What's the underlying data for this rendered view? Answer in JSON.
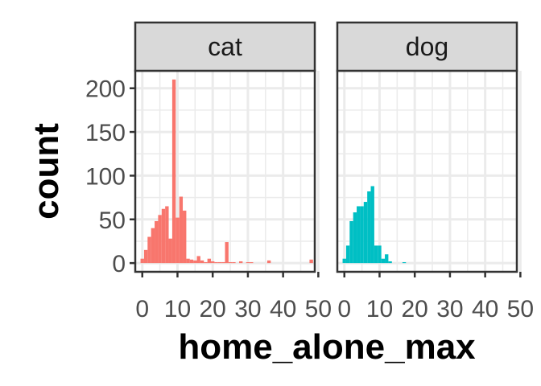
{
  "chart_data": {
    "type": "bar",
    "subtype": "faceted-histogram",
    "title": "",
    "xlabel": "home_alone_max",
    "ylabel": "count",
    "xlim": [
      -2,
      49
    ],
    "ylim": [
      -10,
      220
    ],
    "x_ticks": [
      0,
      10,
      20,
      30,
      40,
      50
    ],
    "y_ticks": [
      0,
      50,
      100,
      150,
      200
    ],
    "grid": true,
    "legend": "none",
    "bin_width": 1,
    "facets": [
      {
        "name": "cat",
        "color": "#F8766D",
        "bins": [
          {
            "x": 0,
            "count": 5
          },
          {
            "x": 1,
            "count": 15
          },
          {
            "x": 2,
            "count": 30
          },
          {
            "x": 3,
            "count": 40
          },
          {
            "x": 4,
            "count": 48
          },
          {
            "x": 5,
            "count": 55
          },
          {
            "x": 6,
            "count": 62
          },
          {
            "x": 7,
            "count": 65
          },
          {
            "x": 8,
            "count": 28
          },
          {
            "x": 9,
            "count": 210
          },
          {
            "x": 10,
            "count": 52
          },
          {
            "x": 11,
            "count": 76
          },
          {
            "x": 12,
            "count": 60
          },
          {
            "x": 13,
            "count": 5
          },
          {
            "x": 14,
            "count": 4
          },
          {
            "x": 15,
            "count": 3
          },
          {
            "x": 16,
            "count": 8
          },
          {
            "x": 17,
            "count": 3
          },
          {
            "x": 18,
            "count": 1
          },
          {
            "x": 19,
            "count": 5
          },
          {
            "x": 20,
            "count": 2
          },
          {
            "x": 21,
            "count": 1
          },
          {
            "x": 22,
            "count": 1
          },
          {
            "x": 23,
            "count": 1
          },
          {
            "x": 24,
            "count": 24
          },
          {
            "x": 25,
            "count": 1
          },
          {
            "x": 26,
            "count": 1
          },
          {
            "x": 28,
            "count": 2
          },
          {
            "x": 30,
            "count": 1
          },
          {
            "x": 31,
            "count": 1
          },
          {
            "x": 36,
            "count": 3
          },
          {
            "x": 48,
            "count": 4
          }
        ]
      },
      {
        "name": "dog",
        "color": "#00BFC4",
        "bins": [
          {
            "x": 0,
            "count": 5
          },
          {
            "x": 1,
            "count": 20
          },
          {
            "x": 2,
            "count": 48
          },
          {
            "x": 3,
            "count": 58
          },
          {
            "x": 4,
            "count": 65
          },
          {
            "x": 5,
            "count": 65
          },
          {
            "x": 6,
            "count": 70
          },
          {
            "x": 7,
            "count": 82
          },
          {
            "x": 8,
            "count": 88
          },
          {
            "x": 9,
            "count": 20
          },
          {
            "x": 10,
            "count": 20
          },
          {
            "x": 11,
            "count": 5
          },
          {
            "x": 12,
            "count": 10
          },
          {
            "x": 13,
            "count": 2
          },
          {
            "x": 17,
            "count": 1
          }
        ]
      }
    ]
  }
}
